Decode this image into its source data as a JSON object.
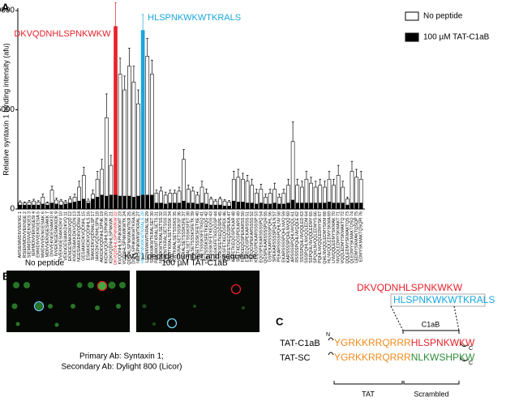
{
  "chart_data": {
    "type": "bar",
    "panel_label": "A",
    "y_label": "Relative syntaxin 1 binding intensity (afu)",
    "x_label": "Kv2.1 peptide number and sequence",
    "categories": [
      "ARSIEMMDIVVEKNG 1",
      "RSIEMMDIVVEKNGE 2",
      "SIEMMDIVVEKNGES 3",
      "IEMMDIVVEKNGESI 4",
      "EMMDIVVEKNGESIA 5",
      "MMDIVVEKNGESIAK 6",
      "MDIVVEKNGESIAKK 7",
      "DIVVEKNGESIAKKD 8",
      "IVVEKNGESIAKKDK 9",
      "VVEKNGESIAKKDKV 10",
      "VEKNGESIAKKDKVQ 11",
      "EKNGESIAKKDKVQD 12",
      "KNGESIAKKDKVQDN 13",
      "NGESIAKKDKVQDNH 14",
      "GESIAKKDKVQDNHL 15",
      "ESIAKKDKVQDNHLS 16",
      "SIAKKDKVQDNHLSP 17",
      "IAKKDKVQDNHLSPN 18",
      "AKKDKVQDNHLSPNK 19",
      "KKDKVQDNHLSPNKW 20",
      "KDKVQDNHLSPNKWK 21",
      "DKVQDNHLSPNKWKW 22",
      "KVQDNHLSPNKWKWT 23",
      "VQDNHLSPNKWKWTK 24",
      "QDNHLSPNKWKWTKR 25",
      "DNHLSPNKWKWTKRA 26",
      "NHLSPNKWKWTKRAL 27",
      "HLSPNKWKWTKRALS 28",
      "LSPNKWKWTKRALSE 29",
      "SPNKWKWTKRALSET 30",
      "PNKWKWTKRALSETS 31",
      "NKWKWTKRALSETSS 32",
      "KWKWTKRALSETSSS 33",
      "WKWTKRALSETSSSK 34",
      "KWTKRALSETSSSKS 35",
      "WTKRALSETSSSKSF 36",
      "TKRALSETSSSKSFE 37",
      "KRALSETSSSKSFET 38",
      "RALSETSSSKSFETK 39",
      "ALSETSSSKSFETKE 40",
      "LSETSSSKSFETKEQ 41",
      "SETSSSKSFETKEQG 42",
      "ETSSSKSFETKEQGS 43",
      "TSSSKSFETKEQGSP 44",
      "SSSKSFETKEQGSPE 45",
      "SSKSFETKEQGSPEK 46",
      "SKSFETKEQGSPEKA 47",
      "KSFETKEQGSPEKAR 48",
      "SFETKEQGSPEKARS 49",
      "FETKEQGSPEKARSS 50",
      "ETKEQGSPEKARSSS 51",
      "TKEQGSPEKARSSSS 52",
      "KEQGSPEKARSSSSP 53",
      "EQGSPEKARSSSSPQ 54",
      "QGSPEKARSSSSPQH 55",
      "GSPEKARSSSSPQHL 56",
      "SPEKARSSSSPQHLN 57",
      "PEKARSSSSPQHLNV 58",
      "EKARSSSSPQHLNVQ 59",
      "KARSSSSPQHLNVQQ 60",
      "ARSSSSPQHLNVQQL 61",
      "RSSSSPQHLNVQQLE 62",
      "SSSSPQHLNVQQLED 63",
      "SSSPQHLNVQQLEDM 64",
      "SSPQHLNVQQLEDMY 65",
      "SPQHLNVQQLEDMYS 66",
      "PQHLNVQQLEDMYSK 67",
      "QHLNVQQLEDMYSKM 68",
      "HLNVQQLEDMYSKMA 69",
      "LNVQQLEDMYSKMAK 70",
      "NVQQLEDMYSKMAKT 71",
      "VQQLEDMYSKMAKTQ 72",
      "QQLEDMYSKMAKTQS 73",
      "QLEDMYSKMAKTQSQ 74",
      "LEDMYSKMAKTQSQP 75",
      "EDMYSKMAKTQSQPI 76"
    ],
    "series": [
      {
        "name": "No peptide",
        "color": "#ffffff",
        "values": [
          330,
          300,
          350,
          400,
          350,
          600,
          300,
          950,
          450,
          400,
          350,
          500,
          600,
          1100,
          1700,
          400,
          750,
          1500,
          2000,
          4600,
          2200,
          9200,
          6800,
          6000,
          7200,
          6400,
          5300,
          9000,
          7700,
          6800,
          800,
          900,
          700,
          800,
          800,
          900,
          2500,
          1000,
          900,
          700,
          1100,
          800,
          500,
          400,
          500,
          400,
          350,
          1500,
          1600,
          1500,
          1400,
          1200,
          800,
          1000,
          600,
          800,
          1000,
          600,
          800,
          1200,
          3400,
          1200,
          1100,
          1500,
          1300,
          1100,
          1200,
          1100,
          1500,
          1200,
          1700,
          1100,
          500,
          1900,
          1600,
          1500
        ],
        "errors": [
          80,
          60,
          80,
          90,
          70,
          150,
          60,
          200,
          100,
          80,
          80,
          120,
          150,
          300,
          400,
          100,
          200,
          400,
          500,
          1200,
          500,
          1200,
          800,
          700,
          900,
          800,
          700,
          800,
          900,
          700,
          150,
          200,
          150,
          150,
          150,
          200,
          500,
          200,
          200,
          150,
          300,
          200,
          100,
          80,
          100,
          80,
          80,
          400,
          400,
          300,
          300,
          300,
          200,
          250,
          150,
          200,
          300,
          150,
          200,
          300,
          1000,
          300,
          300,
          400,
          300,
          300,
          300,
          300,
          400,
          300,
          500,
          300,
          100,
          500,
          400,
          400
        ]
      },
      {
        "name": "100 µM TAT-C1aB",
        "color": "#000000",
        "values": [
          200,
          200,
          200,
          200,
          200,
          250,
          200,
          300,
          250,
          200,
          250,
          300,
          350,
          400,
          500,
          300,
          500,
          600,
          700,
          650,
          700,
          700,
          650,
          650,
          650,
          600,
          650,
          700,
          700,
          700,
          300,
          300,
          250,
          300,
          300,
          300,
          400,
          300,
          300,
          250,
          300,
          250,
          200,
          200,
          200,
          150,
          150,
          400,
          350,
          350,
          300,
          300,
          250,
          300,
          250,
          250,
          300,
          250,
          250,
          300,
          450,
          300,
          300,
          300,
          300,
          300,
          300,
          300,
          350,
          300,
          300,
          300,
          200,
          300,
          300,
          300
        ]
      }
    ],
    "highlights": [
      {
        "index": 21,
        "color": "#e8222b",
        "label": "DKVQDNHLSPNKWKW",
        "side": "left"
      },
      {
        "index": 27,
        "color": "#19a6dc",
        "label": "HLSPNKWKWTKRALS",
        "side": "right"
      }
    ],
    "ylim": [
      0,
      10000
    ],
    "yticks": [
      0,
      5000,
      10000
    ],
    "grid": false,
    "legend": "upper right"
  },
  "panel_b": {
    "label": "B",
    "images": [
      "No peptide",
      "100 µM TAT-C1aB"
    ],
    "caption": [
      "Primary Ab: Syntaxin 1;",
      "Secondary Ab: Dylight 800 (Licor)"
    ]
  },
  "panel_c": {
    "label": "C",
    "peptide_red": "DKVQDNHLSPNKWKW",
    "peptide_blue": "HLSPNKWKWTKRALS",
    "segment_label": "C1aB",
    "rows": [
      {
        "name": "TAT-C1aB",
        "n": "N",
        "tat": "YGRKKRRQRRR",
        "tail": "HLSPNKWKW",
        "c": "C"
      },
      {
        "name": "TAT-SC",
        "tat": "YGRKKRRQRRR",
        "tail": "NLKWSHPKW",
        "c": "C"
      }
    ],
    "bracket_labels": [
      "TAT",
      "Scrambled"
    ]
  }
}
